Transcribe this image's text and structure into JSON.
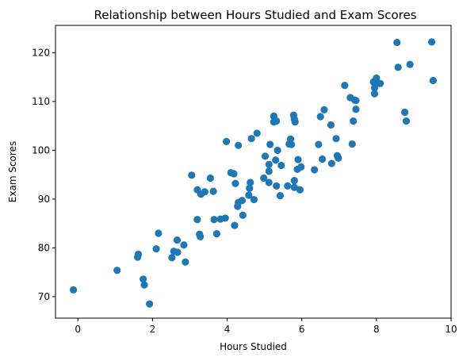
{
  "chart_data": {
    "type": "scatter",
    "title": "Relationship between Hours Studied and Exam Scores",
    "xlabel": "Hours Studied",
    "ylabel": "Exam Scores",
    "xlim": [
      -0.6,
      10.0
    ],
    "ylim": [
      65.6,
      125.6
    ],
    "xticks": [
      0,
      2,
      4,
      6,
      8,
      10
    ],
    "yticks": [
      70,
      80,
      90,
      100,
      110,
      120
    ],
    "grid": false,
    "marker_color": "#1f77b4",
    "series": [
      {
        "points": [
          [
            -0.12,
            71.4
          ],
          [
            1.05,
            75.4
          ],
          [
            1.6,
            78.1
          ],
          [
            1.62,
            78.7
          ],
          [
            1.75,
            73.6
          ],
          [
            1.78,
            72.4
          ],
          [
            1.92,
            68.5
          ],
          [
            2.1,
            79.8
          ],
          [
            2.16,
            83.0
          ],
          [
            2.52,
            78.0
          ],
          [
            2.57,
            79.3
          ],
          [
            2.67,
            79.1
          ],
          [
            2.66,
            81.6
          ],
          [
            2.84,
            80.6
          ],
          [
            2.88,
            77.1
          ],
          [
            3.05,
            94.9
          ],
          [
            3.2,
            91.9
          ],
          [
            3.2,
            85.8
          ],
          [
            3.26,
            82.8
          ],
          [
            3.28,
            82.3
          ],
          [
            3.3,
            91.0
          ],
          [
            3.4,
            91.5
          ],
          [
            3.55,
            94.3
          ],
          [
            3.63,
            91.6
          ],
          [
            3.65,
            85.8
          ],
          [
            3.72,
            82.9
          ],
          [
            3.82,
            85.9
          ],
          [
            3.95,
            86.1
          ],
          [
            3.98,
            101.8
          ],
          [
            4.1,
            95.4
          ],
          [
            4.18,
            95.2
          ],
          [
            4.2,
            84.6
          ],
          [
            4.22,
            93.2
          ],
          [
            4.28,
            88.5
          ],
          [
            4.3,
            89.3
          ],
          [
            4.3,
            101.0
          ],
          [
            4.4,
            89.7
          ],
          [
            4.42,
            86.7
          ],
          [
            4.58,
            90.8
          ],
          [
            4.6,
            92.2
          ],
          [
            4.62,
            93.4
          ],
          [
            4.65,
            102.4
          ],
          [
            4.72,
            89.9
          ],
          [
            4.8,
            103.5
          ],
          [
            4.98,
            94.3
          ],
          [
            5.02,
            98.8
          ],
          [
            5.12,
            93.4
          ],
          [
            5.12,
            95.7
          ],
          [
            5.12,
            97.1
          ],
          [
            5.15,
            101.2
          ],
          [
            5.25,
            107.0
          ],
          [
            5.25,
            105.8
          ],
          [
            5.3,
            98.0
          ],
          [
            5.32,
            106.0
          ],
          [
            5.32,
            92.7
          ],
          [
            5.35,
            100.0
          ],
          [
            5.42,
            90.7
          ],
          [
            5.45,
            96.9
          ],
          [
            5.62,
            92.7
          ],
          [
            5.66,
            101.3
          ],
          [
            5.7,
            102.3
          ],
          [
            5.72,
            101.2
          ],
          [
            5.78,
            107.2
          ],
          [
            5.8,
            106.4
          ],
          [
            5.82,
            105.8
          ],
          [
            5.8,
            92.4
          ],
          [
            5.8,
            93.8
          ],
          [
            5.88,
            96.1
          ],
          [
            5.9,
            98.1
          ],
          [
            5.95,
            91.9
          ],
          [
            5.98,
            96.6
          ],
          [
            6.34,
            96.0
          ],
          [
            6.45,
            101.2
          ],
          [
            6.5,
            106.9
          ],
          [
            6.55,
            98.2
          ],
          [
            6.6,
            108.3
          ],
          [
            6.78,
            105.2
          ],
          [
            6.8,
            97.3
          ],
          [
            6.92,
            102.4
          ],
          [
            6.95,
            98.9
          ],
          [
            6.98,
            98.4
          ],
          [
            7.15,
            113.3
          ],
          [
            7.3,
            110.8
          ],
          [
            7.35,
            101.3
          ],
          [
            7.38,
            106.0
          ],
          [
            7.42,
            110.3
          ],
          [
            7.45,
            108.4
          ],
          [
            7.45,
            110.2
          ],
          [
            7.92,
            114.0
          ],
          [
            7.95,
            111.6
          ],
          [
            7.95,
            112.8
          ],
          [
            7.98,
            114.4
          ],
          [
            8.0,
            114.8
          ],
          [
            8.05,
            113.8
          ],
          [
            8.1,
            113.7
          ],
          [
            8.55,
            122.1
          ],
          [
            8.58,
            117.0
          ],
          [
            8.76,
            107.8
          ],
          [
            8.8,
            106.0
          ],
          [
            8.9,
            117.6
          ],
          [
            9.48,
            122.2
          ],
          [
            9.52,
            114.3
          ]
        ]
      }
    ]
  }
}
